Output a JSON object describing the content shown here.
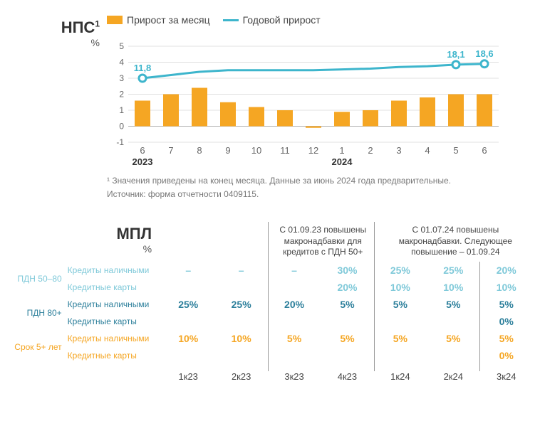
{
  "nps": {
    "title": "НПС",
    "super": "1",
    "unit": "%",
    "legend_bar": "Прирост за месяц",
    "legend_line": "Годовой прирост",
    "bar_color": "#F5A623",
    "line_color": "#3DB5CC",
    "grid_color": "#E0E0E0",
    "axis_color": "#B0B0B0",
    "text_color": "#666666",
    "ymin": -1,
    "ymax": 5,
    "ytick_step": 1,
    "x_labels": [
      "6",
      "7",
      "8",
      "9",
      "10",
      "11",
      "12",
      "1",
      "2",
      "3",
      "4",
      "5",
      "6"
    ],
    "year_labels": [
      {
        "text": "2023",
        "col_index": 0
      },
      {
        "text": "2024",
        "col_index": 7
      }
    ],
    "bars": [
      1.6,
      2.0,
      2.4,
      1.5,
      1.2,
      1.0,
      -0.1,
      0.9,
      1.0,
      1.6,
      1.8,
      2.0,
      2.0
    ],
    "line": [
      3.0,
      3.2,
      3.4,
      3.5,
      3.5,
      3.5,
      3.5,
      3.55,
      3.6,
      3.7,
      3.75,
      3.85,
      3.9
    ],
    "line_markers": [
      {
        "i": 0,
        "label": "11,8"
      },
      {
        "i": 11,
        "label": "18,1"
      },
      {
        "i": 12,
        "label": "18,6"
      }
    ],
    "footnotes": [
      "¹ Значения приведены на конец месяца. Данные за июнь 2024 года предварительные.",
      "Источник: форма отчетности 0409115."
    ]
  },
  "mpl": {
    "title": "МПЛ",
    "unit": "%",
    "header_note_1": "С 01.09.23 повышены макронадбавки для кредитов с ПДН 50+",
    "header_note_2": "С 01.07.24 повышены макронадбавки. Следующее повышение – 01.09.24",
    "periods": [
      "1к23",
      "2к23",
      "3к23",
      "4к23",
      "1к24",
      "2к24",
      "3к24"
    ],
    "groups": [
      {
        "label": "ПДН 50–80",
        "color": "#7FC9D9",
        "rows": [
          {
            "sub": "Кредиты наличными",
            "vals": [
              "–",
              "–",
              "–",
              "30%",
              "25%",
              "25%",
              "20%"
            ]
          },
          {
            "sub": "Кредитные карты",
            "vals": [
              "",
              "",
              "",
              "20%",
              "10%",
              "10%",
              "10%"
            ]
          }
        ]
      },
      {
        "label": "ПДН 80+",
        "color": "#2C7F9B",
        "rows": [
          {
            "sub": "Кредиты наличными",
            "vals": [
              "25%",
              "25%",
              "20%",
              "5%",
              "5%",
              "5%",
              "5%"
            ]
          },
          {
            "sub": "Кредитные карты",
            "vals": [
              "",
              "",
              "",
              "",
              "",
              "",
              "0%"
            ]
          }
        ]
      },
      {
        "label": "Срок 5+ лет",
        "color": "#F5A623",
        "rows": [
          {
            "sub": "Кредиты наличными",
            "vals": [
              "10%",
              "10%",
              "5%",
              "5%",
              "5%",
              "5%",
              "5%"
            ]
          },
          {
            "sub": "Кредитные карты",
            "vals": [
              "",
              "",
              "",
              "",
              "",
              "",
              "0%"
            ]
          }
        ]
      }
    ]
  }
}
